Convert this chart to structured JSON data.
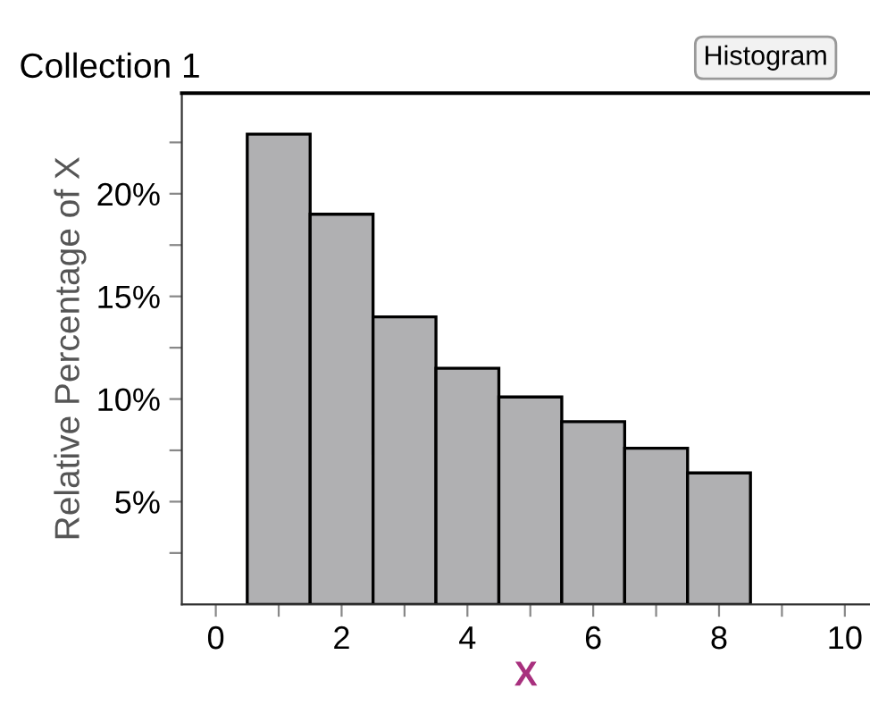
{
  "chart_data": {
    "type": "histogram",
    "title": "Collection 1",
    "xlabel": "X",
    "ylabel": "Relative Percentage of X",
    "annotations": [
      "Histogram"
    ],
    "bins": [
      0.5,
      1.5,
      2.5,
      3.5,
      4.5,
      5.5,
      6.5,
      7.5,
      8.5
    ],
    "values": [
      22.9,
      19.0,
      14.0,
      11.5,
      10.1,
      8.9,
      7.6,
      6.4
    ],
    "color": "#b0b0b2",
    "xlim": [
      -0.54,
      10.4
    ],
    "xticks": [
      0,
      {
        "value": 1,
        "label": null
      },
      2,
      {
        "value": 3,
        "label": null
      },
      4,
      {
        "value": 5,
        "label": null
      },
      6,
      {
        "value": 7,
        "label": null
      },
      8,
      {
        "value": 9,
        "label": null
      },
      10
    ],
    "ylim": [
      0,
      24.9
    ],
    "yticks": [
      {
        "value": 2.5,
        "label": null
      },
      {
        "value": 5,
        "label": "5%"
      },
      {
        "value": 7.5,
        "label": null
      },
      {
        "value": 10,
        "label": "10%"
      },
      {
        "value": 12.5,
        "label": null
      },
      {
        "value": 15,
        "label": "15%"
      },
      {
        "value": 17.5,
        "label": null
      },
      {
        "value": 20,
        "label": "20%"
      },
      {
        "value": 22.5,
        "label": null
      }
    ],
    "grid": false
  }
}
